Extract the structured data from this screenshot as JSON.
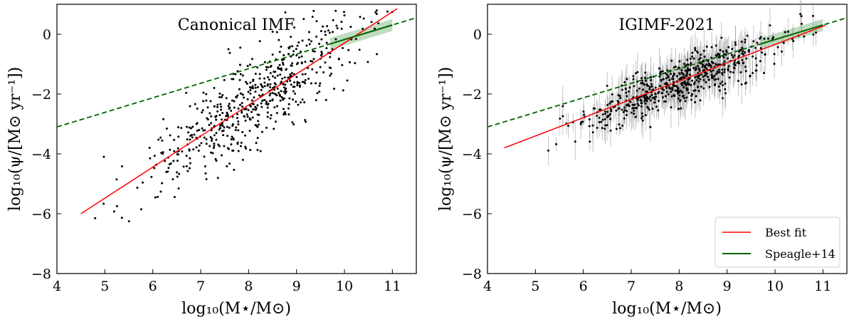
{
  "chart_data": [
    {
      "type": "scatter",
      "title": "Canonical IMF",
      "xlabel": "log₁₀(M⋆/M⊙)",
      "ylabel": "log₁₀(ψ/[M⊙ yr⁻¹])",
      "xlim": [
        4,
        11.5
      ],
      "ylim": [
        -8,
        1
      ],
      "xticks": [
        "4",
        "5",
        "6",
        "7",
        "8",
        "9",
        "10",
        "11"
      ],
      "yticks": [
        "−8",
        "−6",
        "−4",
        "−2",
        "0"
      ],
      "xtick_values": [
        4,
        5,
        6,
        7,
        8,
        9,
        10,
        11
      ],
      "ytick_values": [
        -8,
        -6,
        -4,
        -2,
        0
      ],
      "error_bars": false,
      "best_fit": {
        "x": [
          4.5,
          11.1
        ],
        "y": [
          -6.0,
          0.85
        ],
        "color": "#ff0000"
      },
      "speagle_line": {
        "x": [
          4.0,
          11.5
        ],
        "y": [
          -3.1,
          0.55
        ],
        "solid_range": [
          9.7,
          11.0
        ],
        "band": [
          9.7,
          11.0
        ],
        "color": "#006400"
      },
      "scatter": {
        "count": 600,
        "seed": 7,
        "x_center": 8.1,
        "x_spread": 1.1,
        "x_min": 4.55,
        "x_max": 11.05,
        "slope": 1.04,
        "intercept": -10.7,
        "scatter_sigma": 0.75
      }
    },
    {
      "type": "scatter",
      "title": "IGIMF-2021",
      "xlabel": "log₁₀(M⋆/M⊙)",
      "ylabel": "log₁₀(ψ/[M⊙ yr⁻¹])",
      "xlim": [
        4,
        11.5
      ],
      "ylim": [
        -8,
        1
      ],
      "xticks": [
        "4",
        "5",
        "6",
        "7",
        "8",
        "9",
        "10",
        "11"
      ],
      "yticks": [
        "−8",
        "−6",
        "−4",
        "−2",
        "0"
      ],
      "xtick_values": [
        4,
        5,
        6,
        7,
        8,
        9,
        10,
        11
      ],
      "ytick_values": [
        -8,
        -6,
        -4,
        -2,
        0
      ],
      "error_bars": true,
      "best_fit": {
        "x": [
          4.35,
          11.05
        ],
        "y": [
          -3.8,
          0.3
        ],
        "color": "#ff0000"
      },
      "speagle_line": {
        "x": [
          4.0,
          11.5
        ],
        "y": [
          -3.1,
          0.55
        ],
        "solid_range": [
          9.7,
          11.0
        ],
        "band": [
          9.7,
          11.0
        ],
        "color": "#006400"
      },
      "scatter": {
        "count": 600,
        "seed": 11,
        "x_center": 8.1,
        "x_spread": 1.05,
        "x_min": 4.4,
        "x_max": 11.0,
        "slope": 0.6,
        "intercept": -6.4,
        "scatter_sigma": 0.38
      }
    }
  ],
  "legend": [
    {
      "label": "Best fit",
      "color": "#ff0000"
    },
    {
      "label": "Speagle+14",
      "color": "#006400"
    }
  ]
}
